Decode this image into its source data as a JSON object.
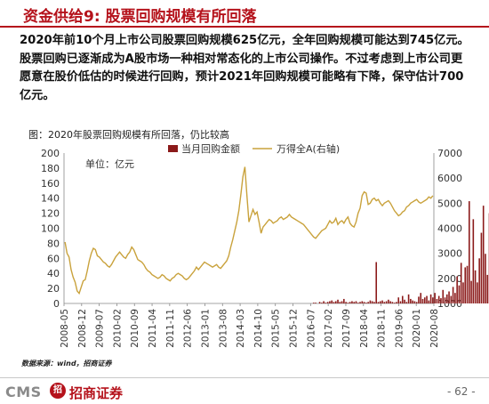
{
  "header": {
    "title": "资金供给9: 股票回购规模有所回落",
    "body": "2020年前10个月上市公司股票回购规模625亿元，全年回购规模可能达到745亿元。股票回购已逐渐成为A股市场一种相对常态化的上市公司操作。不过考虑到上市公司更愿意在股价低估的时候进行回购，预计2021年回购规模可能略有下降，保守估计700亿元。"
  },
  "figure": {
    "caption": "图：2020年股票回购规模有所回落，仍比较高",
    "unit_label": "单位：亿元",
    "source": "数据来源：wind，招商证券"
  },
  "footer": {
    "brand": "CMS",
    "logo_glyph": "招",
    "company": "招商证券",
    "page": "- 62 -"
  },
  "colors": {
    "accent": "#b5121b",
    "bar": "#8b1a1a",
    "line": "#c9a23c"
  },
  "chart_data": {
    "type": "bar+line",
    "legend": [
      "当月回购金额",
      "万得全A(右轴)"
    ],
    "legend_placement": "top",
    "y_left": {
      "min": 0,
      "max": 200,
      "ticks": [
        "0",
        "20",
        "40",
        "60",
        "80",
        "100",
        "120",
        "140",
        "160",
        "180",
        "200"
      ]
    },
    "y_right": {
      "min": 1000,
      "max": 7000,
      "ticks": [
        "1000",
        "2000",
        "3000",
        "4000",
        "5000",
        "6000",
        "7000"
      ]
    },
    "x_ticks": [
      "2008-05",
      "2008-12",
      "2009-07",
      "2010-02",
      "2010-09",
      "2011-04",
      "2011-11",
      "2012-06",
      "2013-01",
      "2013-08",
      "2014-03",
      "2014-10",
      "2015-05",
      "2015-12",
      "2016-07",
      "2017-02",
      "2017-09",
      "2018-04",
      "2018-11",
      "2019-06",
      "2020-01",
      "2020-08"
    ],
    "bars": [
      0,
      0,
      0,
      0,
      0,
      0,
      0,
      0,
      0,
      0,
      0,
      0,
      0,
      0,
      0,
      0,
      0,
      0,
      0,
      0,
      0,
      0,
      0,
      0,
      0,
      0,
      0,
      0,
      0,
      0,
      0,
      0,
      0,
      0,
      0,
      0,
      0,
      0,
      0,
      0,
      0,
      0,
      0,
      0,
      0,
      0,
      0,
      0,
      0,
      0,
      0,
      0,
      0,
      0,
      0,
      0,
      0,
      0,
      0,
      0,
      0,
      0,
      0,
      0,
      0,
      0,
      0,
      0,
      0,
      0,
      0,
      0,
      0,
      0,
      0,
      0,
      0,
      0,
      0,
      0,
      0,
      0,
      0,
      0,
      0,
      0,
      0,
      0,
      0,
      0,
      0,
      0,
      0,
      0,
      0,
      0,
      0,
      0,
      0,
      0,
      0,
      0,
      0,
      0,
      0,
      0,
      0,
      0,
      0,
      0,
      0,
      0,
      0,
      0,
      0,
      0,
      0,
      0,
      0,
      0,
      0,
      0,
      0,
      1,
      1,
      0,
      2,
      1,
      3,
      1,
      2,
      3,
      4,
      2,
      3,
      5,
      2,
      3,
      6,
      2,
      1,
      2,
      3,
      2,
      3,
      1,
      2,
      3,
      2,
      1,
      2,
      4,
      3,
      2,
      55,
      2,
      3,
      4,
      2,
      3,
      5,
      3,
      2,
      1,
      2,
      8,
      3,
      10,
      5,
      2,
      12,
      6,
      4,
      3,
      2,
      9,
      14,
      6,
      8,
      10,
      4,
      12,
      8,
      14,
      6,
      10,
      7,
      18,
      8,
      12,
      16,
      10,
      22,
      14,
      36,
      24,
      54,
      28,
      48,
      50,
      136,
      30,
      112,
      44,
      28,
      60,
      94,
      130,
      66,
      38,
      120,
      58,
      80,
      74,
      110,
      45,
      66,
      32,
      58,
      44,
      36,
      30,
      94,
      52,
      40,
      28,
      64,
      84,
      48,
      56,
      110,
      58,
      36,
      28
    ],
    "line": [
      3450,
      3000,
      2850,
      2350,
      2050,
      1850,
      1500,
      1400,
      1650,
      1900,
      1950,
      2300,
      2700,
      3000,
      3200,
      3150,
      2900,
      2850,
      2750,
      2650,
      2600,
      2500,
      2450,
      2550,
      2700,
      2850,
      2950,
      3050,
      2950,
      2850,
      2800,
      2950,
      3050,
      3250,
      3150,
      2950,
      2750,
      2700,
      2650,
      2550,
      2400,
      2300,
      2250,
      2150,
      2100,
      2050,
      2000,
      2050,
      2150,
      2100,
      2000,
      1950,
      1900,
      2000,
      2050,
      2150,
      2200,
      2150,
      2100,
      2000,
      1950,
      2000,
      2100,
      2200,
      2300,
      2450,
      2350,
      2450,
      2550,
      2650,
      2600,
      2550,
      2500,
      2450,
      2500,
      2550,
      2450,
      2400,
      2500,
      2600,
      2700,
      2900,
      3250,
      3550,
      3900,
      4250,
      4700,
      5350,
      6050,
      6450,
      5300,
      4250,
      4500,
      4750,
      4550,
      4650,
      4250,
      3800,
      4050,
      4150,
      4250,
      4350,
      4300,
      4200,
      4250,
      4300,
      4400,
      4450,
      4350,
      4400,
      4450,
      4550,
      4450,
      4400,
      4350,
      4300,
      4250,
      4200,
      4150,
      4050,
      3950,
      3850,
      3750,
      3650,
      3600,
      3700,
      3800,
      3900,
      3950,
      4000,
      4150,
      4300,
      4200,
      4250,
      4400,
      4150,
      4250,
      4300,
      4200,
      4350,
      4450,
      4200,
      4100,
      4050,
      4250,
      4600,
      4800,
      5300,
      5450,
      5400,
      4950,
      5000,
      5150,
      5200,
      5100,
      5150,
      5000,
      4900,
      5000,
      5050,
      5100,
      5000,
      4850,
      4700,
      4600,
      4500,
      4550,
      4650,
      4700,
      4850,
      4900,
      5000,
      5050,
      5100,
      5150,
      5050,
      5000,
      5050,
      5100,
      5150,
      5250,
      5200,
      5300
    ]
  }
}
